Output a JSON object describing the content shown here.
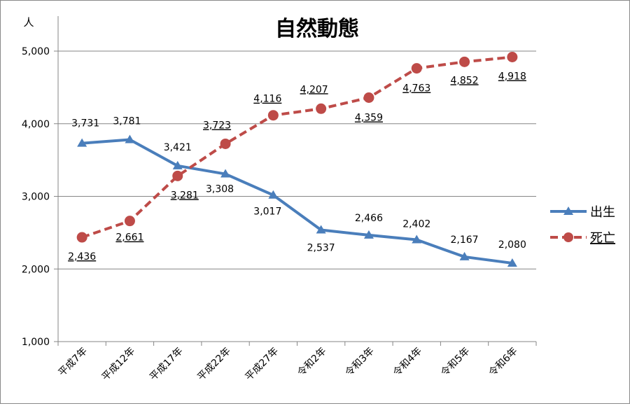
{
  "chart_data": {
    "type": "line",
    "title": "自然動態",
    "ylabel": "人",
    "xlabel": "",
    "ylim": [
      1000,
      5000
    ],
    "yticks": [
      1000,
      2000,
      3000,
      4000,
      5000
    ],
    "ytick_labels": [
      "1,000",
      "2,000",
      "3,000",
      "4,000",
      "5,000"
    ],
    "grid": true,
    "legend_position": "right",
    "categories": [
      "平成7年",
      "平成12年",
      "平成17年",
      "平成22年",
      "平成27年",
      "令和2年",
      "令和3年",
      "令和4年",
      "令和5年",
      "令和6年"
    ],
    "series": [
      {
        "name": "出生",
        "color": "#4a7ebb",
        "style": "solid",
        "marker": "triangle",
        "values": [
          3731,
          3781,
          3421,
          3308,
          3017,
          2537,
          2466,
          2402,
          2167,
          2080
        ],
        "labels": [
          "3,731",
          "3,781",
          "3,421",
          "3,308",
          "3,017",
          "2,537",
          "2,466",
          "2,402",
          "2,167",
          "2,080"
        ]
      },
      {
        "name": "死亡",
        "color": "#be4b48",
        "style": "dashed",
        "marker": "circle",
        "values": [
          2436,
          2661,
          3281,
          3723,
          4116,
          4207,
          4359,
          4763,
          4852,
          4918
        ],
        "labels": [
          "2,436",
          "2,661",
          "3,281",
          "3,723",
          "4,116",
          "4,207",
          "4,359",
          "4,763",
          "4,852",
          "4,918"
        ]
      }
    ]
  }
}
